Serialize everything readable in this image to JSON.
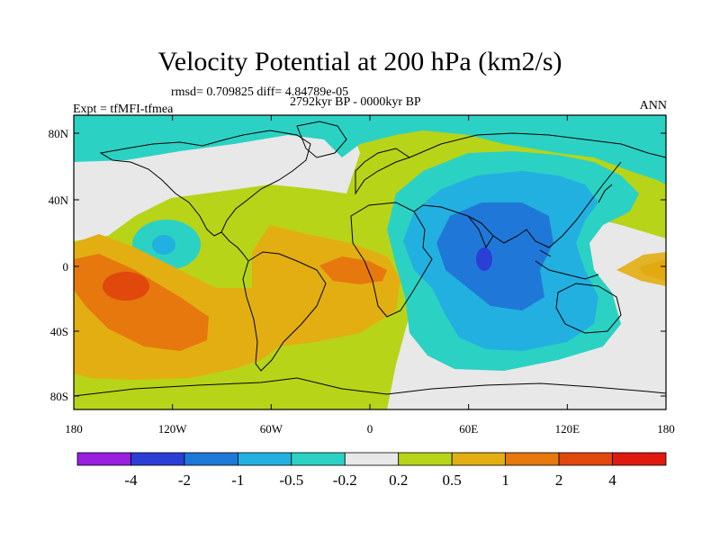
{
  "title": "Velocity Potential at 200 hPa (km2/s)",
  "stats": "rmsd= 0.709825 diff= 4.84789e-05",
  "period": "2792kyr BP - 0000kyr BP",
  "experiment": "Expt = tfMFI-tfmea",
  "season": "ANN",
  "lon_ticks": [
    "180",
    "120W",
    "60W",
    "0",
    "60E",
    "120E",
    "180"
  ],
  "lat_ticks": [
    "80N",
    "40N",
    "0",
    "40S",
    "80S"
  ],
  "colorbar": {
    "labels": [
      "-4",
      "-2",
      "-1",
      "-0.5",
      "-0.2",
      "0.2",
      "0.5",
      "1",
      "2",
      "4"
    ],
    "colors": [
      "#9a1ee0",
      "#2b3fd6",
      "#1f78d8",
      "#22b0e0",
      "#2bd2c4",
      "#e8e8e8",
      "#b8d418",
      "#e2ae12",
      "#e6780e",
      "#e0480c",
      "#e01a10"
    ]
  },
  "palette": {
    "neg4": "#9a1ee0",
    "neg2": "#2b3fd6",
    "neg1": "#1f78d8",
    "neg05": "#22b0e0",
    "neg02": "#2bd2c4",
    "neutral": "#e8e8e8",
    "pos02": "#b8d418",
    "pos05": "#e2ae12",
    "pos1": "#e6780e",
    "pos2": "#e0480c",
    "pos4": "#e01a10"
  }
}
